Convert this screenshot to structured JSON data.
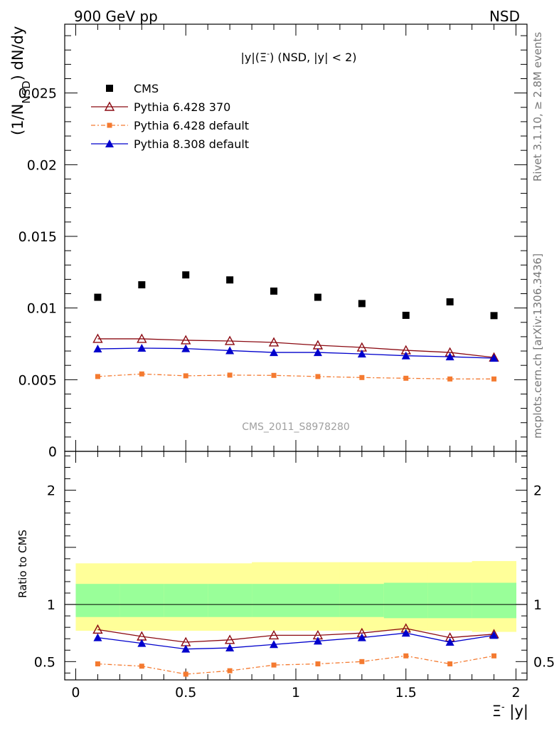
{
  "header": {
    "left": "900 GeV pp",
    "right": "NSD"
  },
  "side_text": {
    "rivet": "Rivet 3.1.10, ≥ 2.8M events",
    "url": "mcplots.cern.ch [arXiv:1306.3436]"
  },
  "watermark": "CMS_2011_S8978280",
  "title_parts": {
    "a": "|y|(Ξ",
    "a_sup": "-",
    "b": ") (NSD, |y| < 2)"
  },
  "ylabel_parts": {
    "pre": "(1/N",
    "sub": "NSD",
    "post": ") dN/dy"
  },
  "ratio_ylabel": "Ratio to CMS",
  "xlabel_parts": {
    "pre": "Ξ",
    "sup": "-",
    "post": " |y|"
  },
  "colors": {
    "cms": "#000000",
    "pythia6_370": "#8b0a12",
    "pythia6_default": "#f47a30",
    "pythia8_default": "#0000cc",
    "band_outer": "#ffff99",
    "band_inner": "#99ff99"
  },
  "chart_data": {
    "type": "scatter",
    "x": [
      0.1,
      0.3,
      0.5,
      0.7,
      0.9,
      1.1,
      1.3,
      1.5,
      1.7,
      1.9
    ],
    "xlim": [
      -0.05,
      2.05
    ],
    "ylim": [
      0,
      0.0298
    ],
    "x_ticks": [
      "0",
      "0.5",
      "1",
      "1.5",
      "2"
    ],
    "y_ticks": [
      "0",
      "0.005",
      "0.01",
      "0.015",
      "0.02",
      "0.025"
    ],
    "legend_position": "top-left",
    "series": [
      {
        "name": "CMS",
        "marker": "square",
        "values": [
          0.01075,
          0.01162,
          0.01231,
          0.01196,
          0.01118,
          0.01075,
          0.01031,
          0.00949,
          0.01043,
          0.00947
        ]
      },
      {
        "name": "Pythia 6.428 370",
        "marker": "open-triangle",
        "values": [
          0.00785,
          0.00785,
          0.00775,
          0.0077,
          0.0076,
          0.0074,
          0.00725,
          0.00705,
          0.0069,
          0.00655
        ]
      },
      {
        "name": "Pythia 6.428 default",
        "marker": "small-square",
        "dashed": true,
        "values": [
          0.00522,
          0.0054,
          0.00527,
          0.00532,
          0.0053,
          0.00522,
          0.00515,
          0.0051,
          0.00505,
          0.00505
        ]
      },
      {
        "name": "Pythia 8.308 default",
        "marker": "filled-triangle",
        "values": [
          0.00715,
          0.0072,
          0.00717,
          0.00703,
          0.0069,
          0.0069,
          0.0068,
          0.00667,
          0.0066,
          0.0065
        ]
      }
    ],
    "ratio": {
      "ylim": [
        0.34,
        2.34
      ],
      "y_ticks": [
        "0.5",
        "1",
        "2"
      ],
      "band_edges": [
        0.0,
        0.2,
        0.4,
        0.6,
        0.8,
        1.0,
        1.2,
        1.4,
        1.6,
        1.8,
        2.0
      ],
      "band_outer_lo": [
        0.77,
        0.77,
        0.77,
        0.77,
        0.77,
        0.77,
        0.77,
        0.77,
        0.77,
        0.76
      ],
      "band_outer_hi": [
        1.36,
        1.36,
        1.36,
        1.36,
        1.37,
        1.37,
        1.37,
        1.37,
        1.37,
        1.38
      ],
      "band_inner_lo": [
        0.89,
        0.89,
        0.89,
        0.89,
        0.89,
        0.89,
        0.89,
        0.88,
        0.88,
        0.88
      ],
      "band_inner_hi": [
        1.18,
        1.18,
        1.18,
        1.18,
        1.18,
        1.18,
        1.18,
        1.19,
        1.19,
        1.19
      ],
      "series": [
        {
          "name": "Pythia 6.428 370",
          "values": [
            0.78,
            0.72,
            0.67,
            0.69,
            0.73,
            0.73,
            0.75,
            0.79,
            0.71,
            0.74
          ]
        },
        {
          "name": "Pythia 6.428 default",
          "values": [
            0.48,
            0.46,
            0.39,
            0.42,
            0.47,
            0.48,
            0.5,
            0.55,
            0.48,
            0.55
          ]
        },
        {
          "name": "Pythia 8.308 default",
          "values": [
            0.71,
            0.66,
            0.61,
            0.62,
            0.65,
            0.68,
            0.71,
            0.75,
            0.67,
            0.73
          ]
        }
      ]
    }
  }
}
